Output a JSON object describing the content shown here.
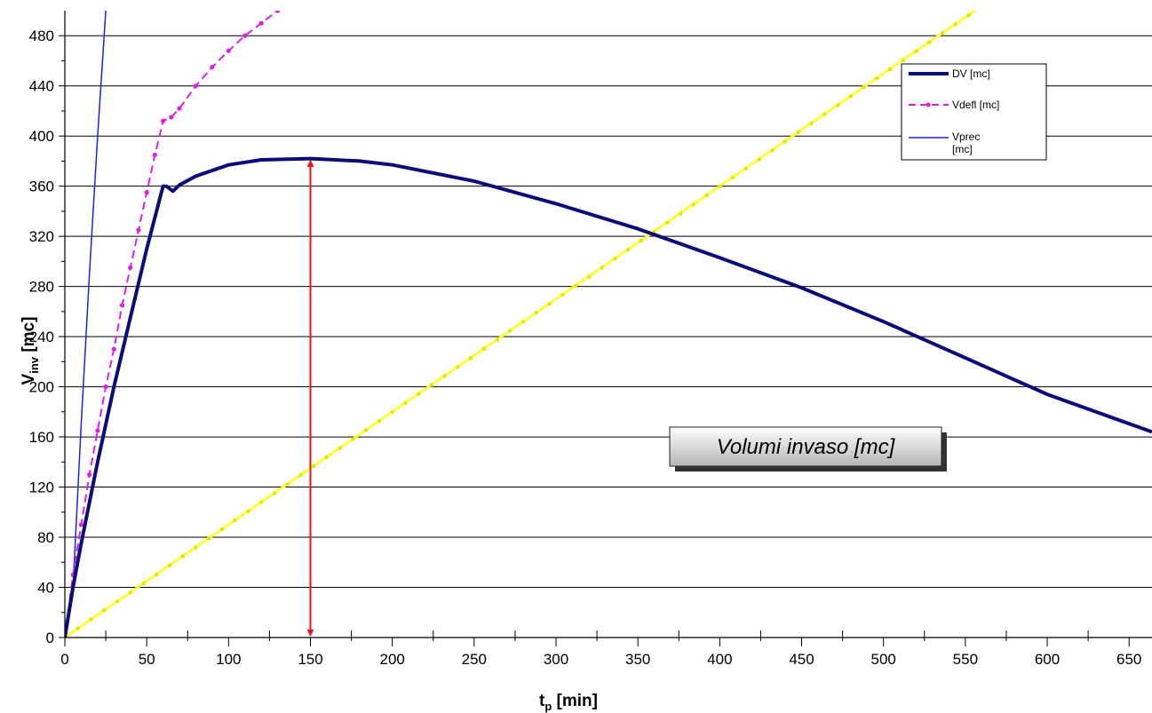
{
  "chart_data": {
    "type": "line",
    "title": "",
    "xlabel": "t",
    "xlabel_sub": "p",
    "xlabel_unit": " [min]",
    "ylabel": "V",
    "ylabel_sub": "inv",
    "ylabel_unit": " [mc]",
    "xlim": [
      0,
      664
    ],
    "ylim": [
      0,
      500
    ],
    "x_ticks": [
      0,
      50,
      100,
      150,
      200,
      250,
      300,
      350,
      400,
      450,
      500,
      550,
      600,
      650
    ],
    "y_ticks": [
      0,
      40,
      80,
      120,
      160,
      200,
      240,
      280,
      320,
      360,
      400,
      440,
      480
    ],
    "grid": "horizontal",
    "legend_position": "top-right",
    "annotation": "Volumi invaso [mc]",
    "max_marker": {
      "x": 150,
      "y_from": 0,
      "y_to": 382,
      "color": "#ee1111"
    },
    "series": [
      {
        "name": "DV [mc]",
        "color": "#0b0b7a",
        "style": "solid-thick",
        "x": [
          0,
          5,
          10,
          20,
          30,
          40,
          50,
          58,
          60,
          62,
          66,
          70,
          80,
          100,
          120,
          150,
          180,
          200,
          250,
          300,
          350,
          400,
          450,
          500,
          550,
          600,
          664
        ],
        "y": [
          0,
          40,
          75,
          140,
          200,
          255,
          310,
          350,
          360,
          360,
          356,
          361,
          368,
          377,
          381,
          382,
          380,
          377,
          364,
          346,
          326,
          303,
          279,
          252,
          223,
          194,
          164
        ]
      },
      {
        "name": "Vdefl [mc]",
        "color": "#e020e0",
        "style": "dashed-markers",
        "x": [
          0,
          5,
          10,
          15,
          20,
          25,
          30,
          35,
          40,
          45,
          50,
          55,
          60,
          65,
          70,
          80,
          90,
          100,
          110,
          120,
          130
        ],
        "y": [
          0,
          50,
          90,
          130,
          165,
          200,
          230,
          265,
          295,
          325,
          355,
          385,
          412,
          415,
          422,
          440,
          455,
          468,
          480,
          490,
          500
        ]
      },
      {
        "name": "Vprec [mc]",
        "color": "#2020e0",
        "style": "solid",
        "x": [
          0,
          5,
          10,
          15,
          20,
          25
        ],
        "y": [
          0,
          40,
          170,
          290,
          400,
          500
        ]
      },
      {
        "name": "",
        "color": "#ffff33",
        "style": "markers",
        "x": [
          0,
          100,
          200,
          300,
          400,
          500,
          556
        ],
        "y": [
          0,
          90,
          180,
          270,
          360,
          450,
          500
        ]
      }
    ]
  }
}
